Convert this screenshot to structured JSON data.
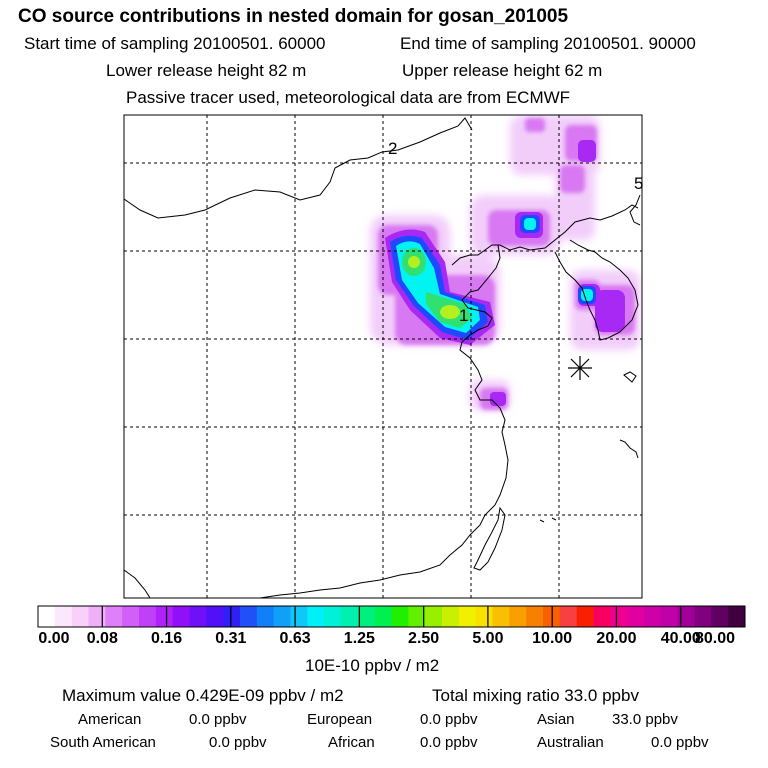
{
  "header": {
    "title": "CO  source contributions in nested domain for gosan_201005",
    "start_time": "Start time of sampling 20100501. 60000",
    "end_time": "End time of sampling 20100501. 90000",
    "lower_release": "Lower release height   82 m",
    "upper_release": "Upper release height   62 m",
    "tracer_note": "Passive tracer used, meteorological data are from ECMWF"
  },
  "map": {
    "contour_labels": [
      "1",
      "2",
      "5"
    ],
    "receptor_marker": "asterisk-icon",
    "colors": {
      "light_purple": "#f0c8f8",
      "medium_purple": "#d970f0",
      "violet": "#a020f0",
      "blue": "#2040ff",
      "cyan": "#00f8f0",
      "green": "#20e070",
      "yellow_green": "#b0f020"
    }
  },
  "colorbar": {
    "tick_labels": [
      "0.00",
      "0.08",
      "0.16",
      "0.31",
      "0.63",
      "1.25",
      "2.50",
      "5.00",
      "10.00",
      "20.00",
      "40.00",
      "80.00"
    ],
    "colors": [
      "#ffffff",
      "#fce8fc",
      "#f8d0f8",
      "#f0b0f8",
      "#e080f8",
      "#d060f8",
      "#c040f8",
      "#b020f8",
      "#9010f8",
      "#7010f8",
      "#5010f8",
      "#3020f8",
      "#2050f8",
      "#1080f8",
      "#10a0f8",
      "#10c8f8",
      "#00f0f8",
      "#00f0d8",
      "#00f0b0",
      "#00f080",
      "#00f050",
      "#20f000",
      "#60f000",
      "#98f000",
      "#c8f000",
      "#f0f000",
      "#f8e000",
      "#f8c000",
      "#f8a000",
      "#f88000",
      "#f86000",
      "#f84040",
      "#f82000",
      "#f80060",
      "#f00090",
      "#e000a0",
      "#d000a8",
      "#c000a8",
      "#a00098",
      "#800080",
      "#600060",
      "#400040"
    ],
    "unit_label": "10E-10 ppbv / m2"
  },
  "footer": {
    "max_value": "Maximum value  0.429E-09 ppbv / m2",
    "total_mixing": "Total mixing ratio      33.0 ppbv",
    "american_label": "American",
    "american_value": "0.0 ppbv",
    "european_label": "European",
    "european_value": "0.0 ppbv",
    "asian_label": "Asian",
    "asian_value": "33.0 ppbv",
    "south_american_label": "South American",
    "south_american_value": "0.0 ppbv",
    "african_label": "African",
    "african_value": "0.0 ppbv",
    "australian_label": "Australian",
    "australian_value": "0.0 ppbv"
  }
}
